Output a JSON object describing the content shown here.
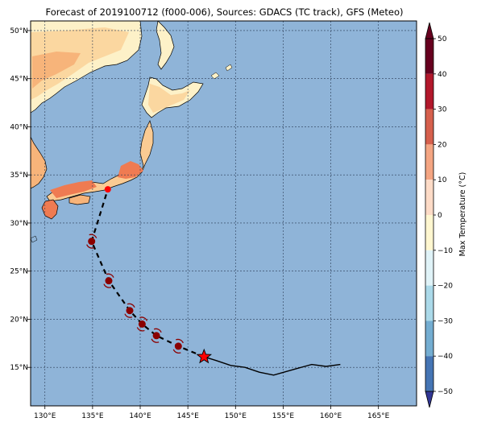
{
  "title": "Forecast of 2019100712 (f000-006), Sources: GDACS (TC track), GFS (Meteo)",
  "colors": {
    "ocean": "#8fb4d8",
    "grid": "#2a3b55",
    "track": "#000000",
    "storm_marker": "#8b0000",
    "current_position": "#ff0000"
  },
  "map": {
    "lon_range": [
      128.5,
      169
    ],
    "lat_range": [
      11,
      51
    ],
    "lon_ticks": [
      {
        "value": 130,
        "label": "130°E"
      },
      {
        "value": 135,
        "label": "135°E"
      },
      {
        "value": 140,
        "label": "140°E"
      },
      {
        "value": 145,
        "label": "145°E"
      },
      {
        "value": 150,
        "label": "150°E"
      },
      {
        "value": 155,
        "label": "155°E"
      },
      {
        "value": 160,
        "label": "160°E"
      },
      {
        "value": 165,
        "label": "165°E"
      }
    ],
    "lat_ticks": [
      {
        "value": 15,
        "label": "15°N"
      },
      {
        "value": 20,
        "label": "20°N"
      },
      {
        "value": 25,
        "label": "25°N"
      },
      {
        "value": 30,
        "label": "30°N"
      },
      {
        "value": 35,
        "label": "35°N"
      },
      {
        "value": 40,
        "label": "40°N"
      },
      {
        "value": 45,
        "label": "45°N"
      },
      {
        "value": 50,
        "label": "50°N"
      }
    ],
    "grid": true
  },
  "track": {
    "past": [
      [
        161,
        15.3
      ],
      [
        159.5,
        15.1
      ],
      [
        158,
        15.3
      ],
      [
        156.5,
        14.9
      ],
      [
        154,
        14.2
      ],
      [
        152.5,
        14.5
      ],
      [
        151,
        15.0
      ],
      [
        149.5,
        15.2
      ],
      [
        148,
        15.7
      ],
      [
        146.7,
        16.1
      ]
    ],
    "current": [
      146.7,
      16.1
    ],
    "forecast": [
      [
        146.7,
        16.1
      ],
      [
        144,
        17.2
      ],
      [
        141.7,
        18.3
      ],
      [
        140.2,
        19.5
      ],
      [
        138.9,
        20.9
      ],
      [
        136.7,
        24.0
      ],
      [
        134.9,
        28.1
      ],
      [
        136.6,
        33.5
      ]
    ],
    "forecast_points": [
      {
        "lon": 144,
        "lat": 17.2,
        "symbol": true
      },
      {
        "lon": 141.7,
        "lat": 18.3,
        "symbol": true
      },
      {
        "lon": 140.2,
        "lat": 19.5,
        "symbol": true
      },
      {
        "lon": 138.9,
        "lat": 20.9,
        "symbol": true
      },
      {
        "lon": 136.7,
        "lat": 24.0,
        "symbol": true
      },
      {
        "lon": 134.9,
        "lat": 28.1,
        "symbol": true
      },
      {
        "lon": 136.6,
        "lat": 33.5,
        "symbol": false
      }
    ]
  },
  "colorbar": {
    "label": "Max Temperature (°C)",
    "ticks": [
      "50",
      "40",
      "30",
      "20",
      "10",
      "0",
      "−10",
      "−20",
      "−30",
      "−40",
      "−50"
    ],
    "colors": [
      "#67001f",
      "#b2182b",
      "#d6604d",
      "#f4a582",
      "#fddbc7",
      "#fff7d0",
      "#e0f3f8",
      "#abd9e9",
      "#74add1",
      "#4575b4",
      "#313695"
    ]
  }
}
